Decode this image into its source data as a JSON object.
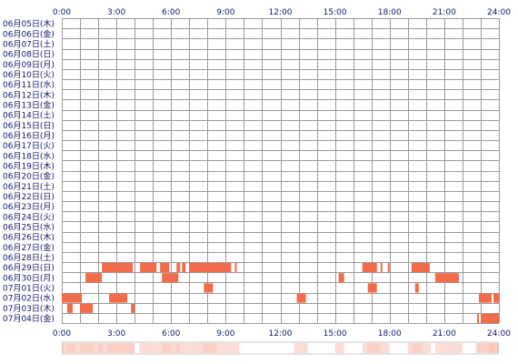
{
  "chart_data": {
    "type": "heatmap",
    "x_ticks": [
      "0:00",
      "3:00",
      "6:00",
      "9:00",
      "12:00",
      "15:00",
      "18:00",
      "21:00",
      "24:00"
    ],
    "rows": [
      "06月05日(木)",
      "06月06日(金)",
      "06月07日(土)",
      "06月08日(日)",
      "06月09日(月)",
      "06月10日(火)",
      "06月11日(水)",
      "06月12日(木)",
      "06月13日(金)",
      "06月14日(土)",
      "06月15日(日)",
      "06月16日(月)",
      "06月17日(火)",
      "06月18日(水)",
      "06月19日(木)",
      "06月20日(金)",
      "06月21日(土)",
      "06月22日(日)",
      "06月23日(月)",
      "06月24日(火)",
      "06月25日(水)",
      "06月26日(木)",
      "06月27日(金)",
      "06月28日(土)",
      "06月29日(日)",
      "06月30日(月)",
      "07月01日(火)",
      "07月02日(水)",
      "07月03日(木)",
      "07月04日(金)"
    ],
    "x_range_hours": [
      0,
      24
    ],
    "grid": true,
    "active_color": "#f26b4a",
    "activity": [
      {
        "row": "06月29日(日)",
        "intervals": [
          [
            2.2,
            3.0
          ],
          [
            3.0,
            3.9
          ],
          [
            4.3,
            5.2
          ],
          [
            5.4,
            5.9
          ],
          [
            6.3,
            6.5
          ],
          [
            6.6,
            6.8
          ],
          [
            7.0,
            9.3
          ],
          [
            9.5,
            9.6
          ],
          [
            16.5,
            17.3
          ],
          [
            17.5,
            17.6
          ],
          [
            17.9,
            18.0
          ],
          [
            19.2,
            20.2
          ]
        ]
      },
      {
        "row": "06月30日(月)",
        "intervals": [
          [
            1.3,
            2.2
          ],
          [
            5.5,
            6.4
          ],
          [
            15.2,
            15.5
          ],
          [
            20.5,
            21.8
          ]
        ]
      },
      {
        "row": "07月01日(火)",
        "intervals": [
          [
            7.8,
            8.3
          ],
          [
            16.8,
            17.3
          ],
          [
            19.4,
            19.6
          ]
        ]
      },
      {
        "row": "07月02日(水)",
        "intervals": [
          [
            0.0,
            1.1
          ],
          [
            2.6,
            3.6
          ],
          [
            12.9,
            13.4
          ],
          [
            22.9,
            23.6
          ],
          [
            23.7,
            24.0
          ]
        ]
      },
      {
        "row": "07月03日(木)",
        "intervals": [
          [
            0.3,
            0.6
          ],
          [
            1.0,
            1.7
          ],
          [
            3.8,
            4.0
          ]
        ]
      },
      {
        "row": "07月04日(金)",
        "intervals": [
          [
            22.8,
            22.9
          ],
          [
            23.0,
            24.0
          ]
        ]
      }
    ]
  }
}
